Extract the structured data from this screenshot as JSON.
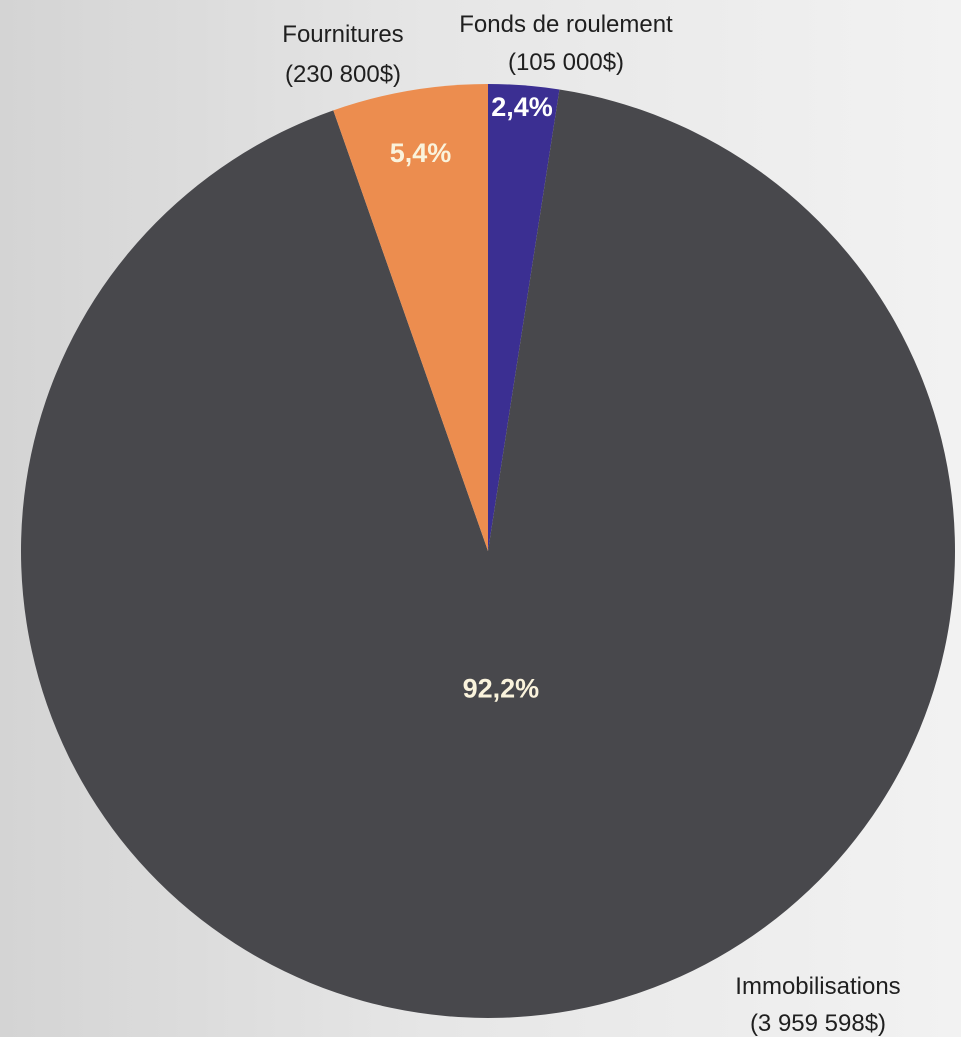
{
  "chart_data": {
    "type": "pie",
    "slices": [
      {
        "name": "Fonds de roulement",
        "amount_label": "(105 000$)",
        "value": 105000,
        "percent_label": "2,4%",
        "color": "#3b2f92",
        "percent_color": "#ffffff"
      },
      {
        "name": "Immobilisations",
        "amount_label": "(3 959 598$)",
        "value": 3959598,
        "percent_label": "92,2%",
        "color": "#48484c",
        "percent_color": "#faf3dc"
      },
      {
        "name": "Fournitures",
        "amount_label": "(230 800$)",
        "value": 230800,
        "percent_label": "5,4%",
        "color": "#ec8d4f",
        "percent_color": "#faf3dc"
      }
    ],
    "start_angle": "12 o'clock",
    "direction": "clockwise",
    "legend": "none"
  }
}
